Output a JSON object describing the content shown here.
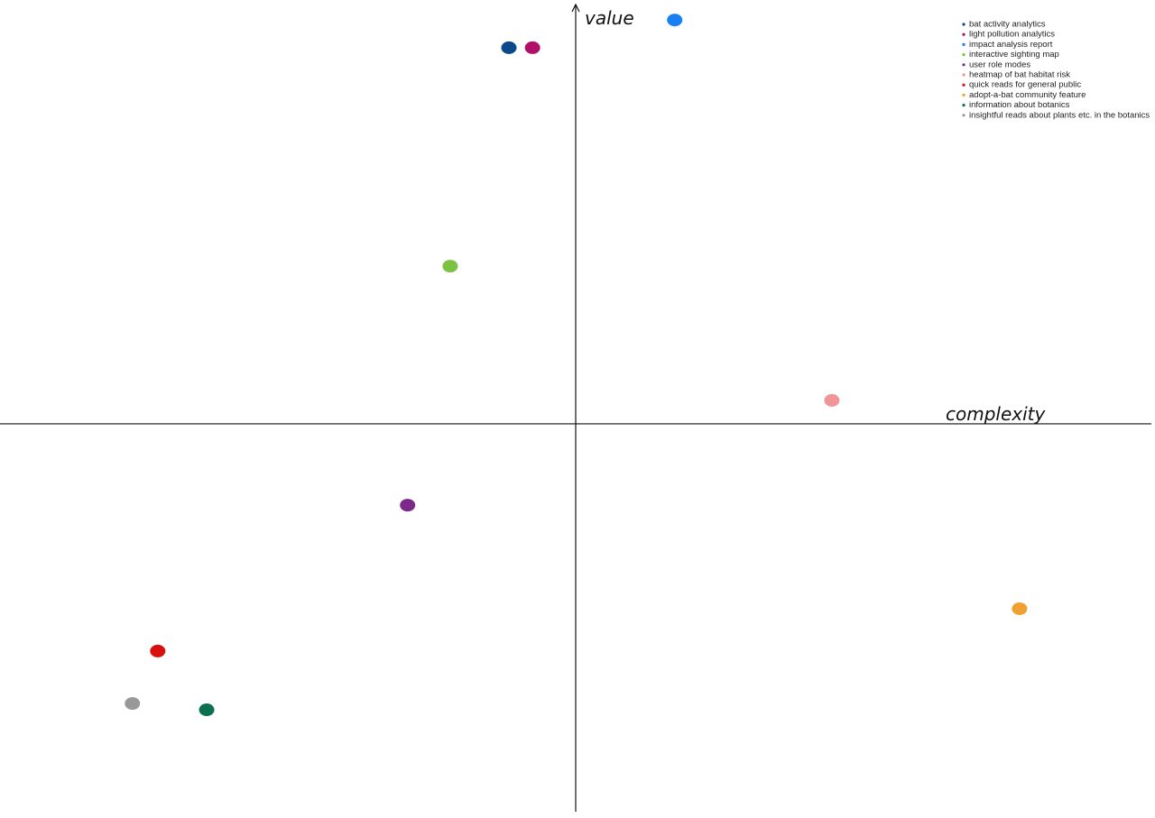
{
  "chart_data": {
    "type": "scatter",
    "x_label": "complexity",
    "y_label": "value",
    "xlim": [
      -10,
      10
    ],
    "ylim": [
      -9.25,
      10
    ],
    "legend": "upper right",
    "series": [
      {
        "name": "bat activity analytics",
        "color": "#0a4a8a",
        "x": [
          -1.16
        ],
        "values": [
          8.97
        ]
      },
      {
        "name": "light pollution analytics",
        "color": "#b0106a",
        "x": [
          -0.75
        ],
        "values": [
          8.97
        ]
      },
      {
        "name": "impact analysis report",
        "color": "#1a7ff0",
        "x": [
          1.72
        ],
        "values": [
          9.63
        ]
      },
      {
        "name": "interactive sighting map",
        "color": "#7cc242",
        "x": [
          -2.18
        ],
        "values": [
          3.76
        ]
      },
      {
        "name": "user role modes",
        "color": "#7b2a8a",
        "x": [
          -2.92
        ],
        "values": [
          -1.94
        ]
      },
      {
        "name": "heatmap of bat habitat risk",
        "color": "#f0959a",
        "x": [
          4.45
        ],
        "values": [
          0.56
        ]
      },
      {
        "name": "quick reads for general public",
        "color": "#d81010",
        "x": [
          -7.26
        ],
        "values": [
          -5.42
        ]
      },
      {
        "name": "adopt-a-bat community feature",
        "color": "#f0a030",
        "x": [
          7.71
        ],
        "values": [
          -4.41
        ]
      },
      {
        "name": "information about botanics",
        "color": "#0a7050",
        "x": [
          -6.41
        ],
        "values": [
          -6.82
        ]
      },
      {
        "name": "insightful reads about plants etc. in the botanics",
        "color": "#999999",
        "x": [
          -7.7
        ],
        "values": [
          -6.67
        ]
      }
    ]
  }
}
